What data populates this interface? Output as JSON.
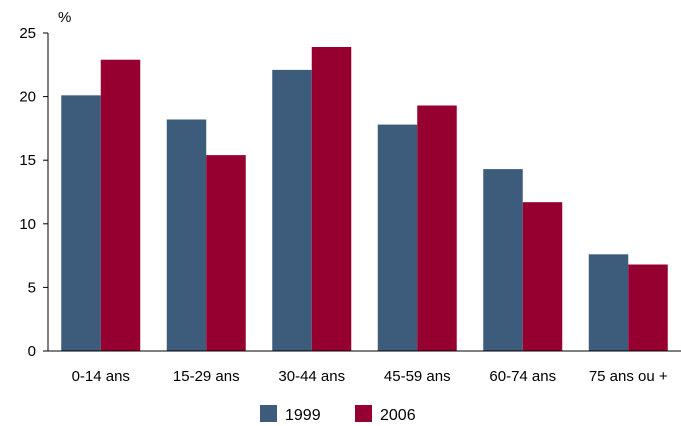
{
  "chart_data": {
    "type": "bar",
    "ylabel": "%",
    "ylim": [
      0,
      25
    ],
    "yticks": [
      0,
      5,
      10,
      15,
      20,
      25
    ],
    "grid": false,
    "legend_position": "bottom",
    "categories": [
      "0-14 ans",
      "15-29 ans",
      "30-44 ans",
      "45-59 ans",
      "60-74 ans",
      "75 ans ou +"
    ],
    "series": [
      {
        "name": "1999",
        "color": "#3d5c7c",
        "values": [
          20.1,
          18.2,
          22.1,
          17.8,
          14.3,
          7.6
        ]
      },
      {
        "name": "2006",
        "color": "#960030",
        "values": [
          22.9,
          15.4,
          23.9,
          19.3,
          11.7,
          6.8
        ]
      }
    ]
  }
}
